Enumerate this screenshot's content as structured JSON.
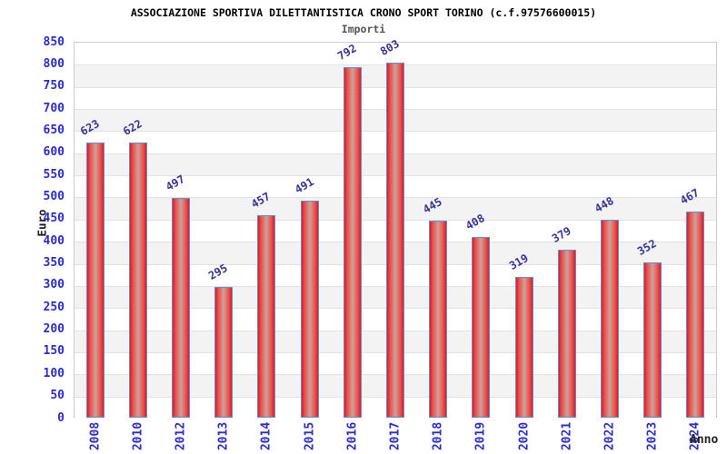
{
  "chart_data": {
    "type": "bar",
    "title": "ASSOCIAZIONE SPORTIVA DILETTANTISTICA CRONO SPORT TORINO (c.f.97576600015)",
    "subtitle": "Importi",
    "xlabel": "Anno",
    "ylabel": "Euro",
    "categories": [
      "2008",
      "2010",
      "2012",
      "2013",
      "2014",
      "2015",
      "2016",
      "2017",
      "2018",
      "2019",
      "2020",
      "2021",
      "2022",
      "2023",
      "2024"
    ],
    "values": [
      623,
      622,
      497,
      295,
      457,
      491,
      792,
      803,
      445,
      408,
      319,
      379,
      448,
      352,
      467
    ],
    "ylim": [
      0,
      850
    ],
    "ytick_step": 50,
    "grid": true,
    "legend": "none",
    "colors": {
      "axis_label_blue": "#2b2bd0",
      "value_label_navy": "#333399",
      "bar_border_blue": "#5e8fd9",
      "bar_red": "#e2181f",
      "bar_center_fade": "#d0a09b",
      "band_gray": "#f3f3f3",
      "gridline": "#e2e2e2",
      "title_color": "#000000",
      "subtitle_color": "#555555"
    }
  }
}
